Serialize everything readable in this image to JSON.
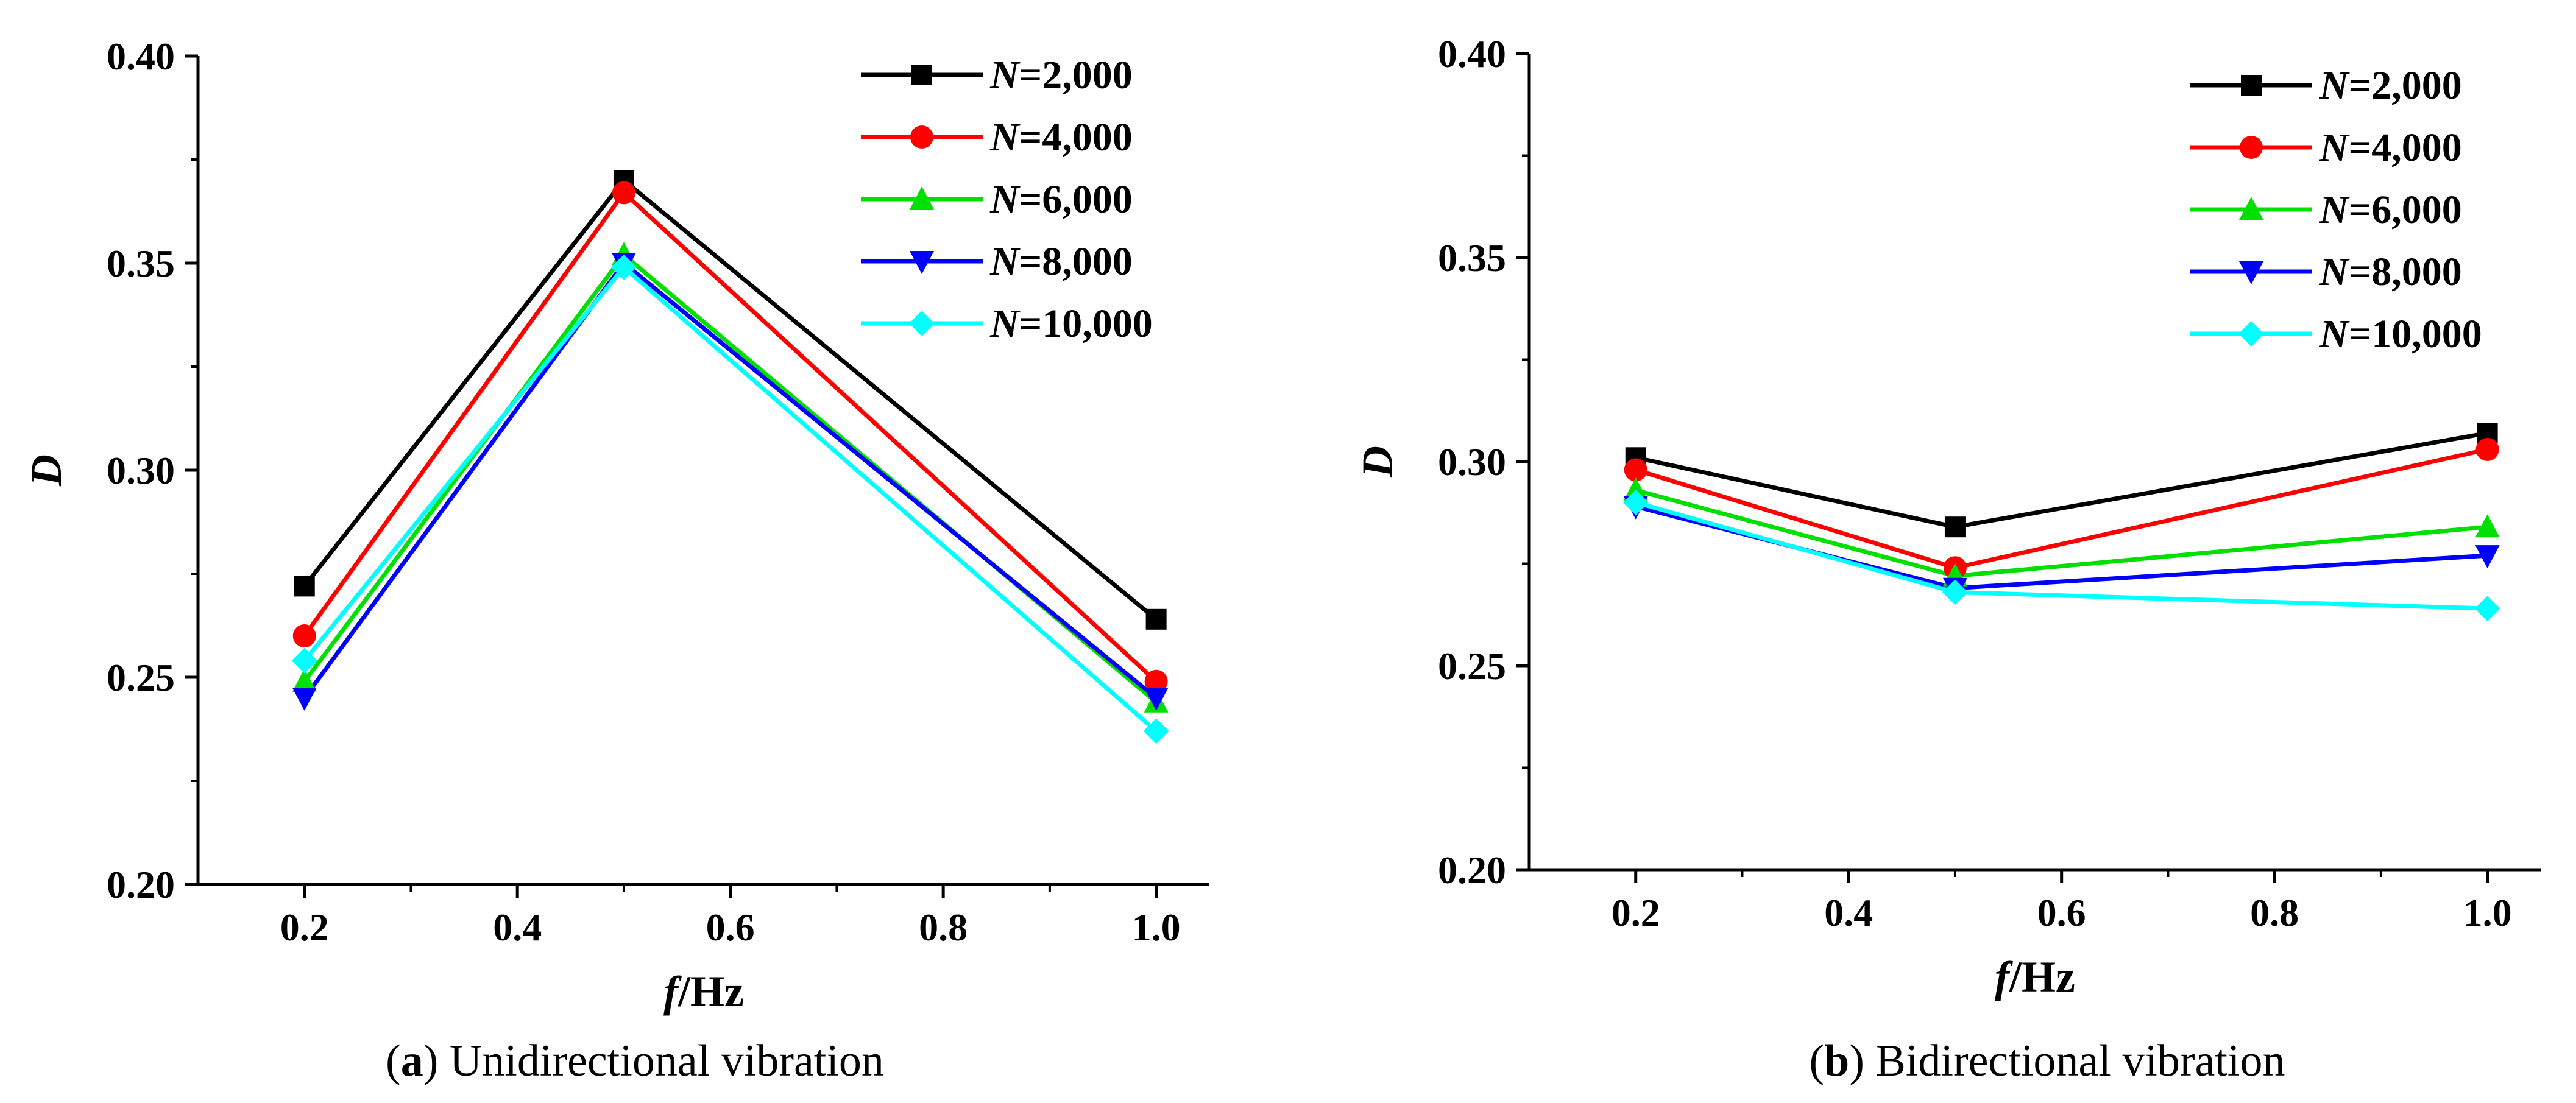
{
  "chart_data": [
    {
      "type": "line",
      "panel_letter": "a",
      "caption": "Unidirectional vibration",
      "xlabel_symbol": "f",
      "xlabel_unit": "/Hz",
      "ylabel": "D",
      "x": [
        0.2,
        0.5,
        1.0
      ],
      "xlim": [
        0.1,
        1.05
      ],
      "ylim": [
        0.2,
        0.4
      ],
      "xticks": [
        "0.2",
        "0.4",
        "0.6",
        "0.8",
        "1.0"
      ],
      "yticks": [
        "0.20",
        "0.25",
        "0.30",
        "0.35",
        "0.40"
      ],
      "legend_position": "top-right",
      "series": [
        {
          "symbol": "N",
          "label": "=2,000",
          "color": "#000000",
          "marker": "square",
          "values": [
            0.272,
            0.37,
            0.264
          ]
        },
        {
          "symbol": "N",
          "label": "=4,000",
          "color": "#ff0000",
          "marker": "circle",
          "values": [
            0.26,
            0.367,
            0.249
          ]
        },
        {
          "symbol": "N",
          "label": "=6,000",
          "color": "#00e000",
          "marker": "triangle-up",
          "values": [
            0.249,
            0.352,
            0.244
          ]
        },
        {
          "symbol": "N",
          "label": "=8,000",
          "color": "#0000ff",
          "marker": "triangle-down",
          "values": [
            0.245,
            0.35,
            0.245
          ]
        },
        {
          "symbol": "N",
          "label": "=10,000",
          "color": "#00ffff",
          "marker": "diamond",
          "values": [
            0.254,
            0.349,
            0.237
          ]
        }
      ]
    },
    {
      "type": "line",
      "panel_letter": "b",
      "caption": "Bidirectional vibration",
      "xlabel_symbol": "f",
      "xlabel_unit": "/Hz",
      "ylabel": "D",
      "x": [
        0.2,
        0.5,
        1.0
      ],
      "xlim": [
        0.1,
        1.05
      ],
      "ylim": [
        0.2,
        0.4
      ],
      "xticks": [
        "0.2",
        "0.4",
        "0.6",
        "0.8",
        "1.0"
      ],
      "yticks": [
        "0.20",
        "0.25",
        "0.30",
        "0.35",
        "0.40"
      ],
      "legend_position": "top-right",
      "series": [
        {
          "symbol": "N",
          "label": "=2,000",
          "color": "#000000",
          "marker": "square",
          "values": [
            0.301,
            0.284,
            0.307
          ]
        },
        {
          "symbol": "N",
          "label": "=4,000",
          "color": "#ff0000",
          "marker": "circle",
          "values": [
            0.298,
            0.274,
            0.303
          ]
        },
        {
          "symbol": "N",
          "label": "=6,000",
          "color": "#00e000",
          "marker": "triangle-up",
          "values": [
            0.293,
            0.272,
            0.284
          ]
        },
        {
          "symbol": "N",
          "label": "=8,000",
          "color": "#0000ff",
          "marker": "triangle-down",
          "values": [
            0.289,
            0.269,
            0.277
          ]
        },
        {
          "symbol": "N",
          "label": "=10,000",
          "color": "#00ffff",
          "marker": "diamond",
          "values": [
            0.29,
            0.268,
            0.264
          ]
        }
      ]
    }
  ]
}
